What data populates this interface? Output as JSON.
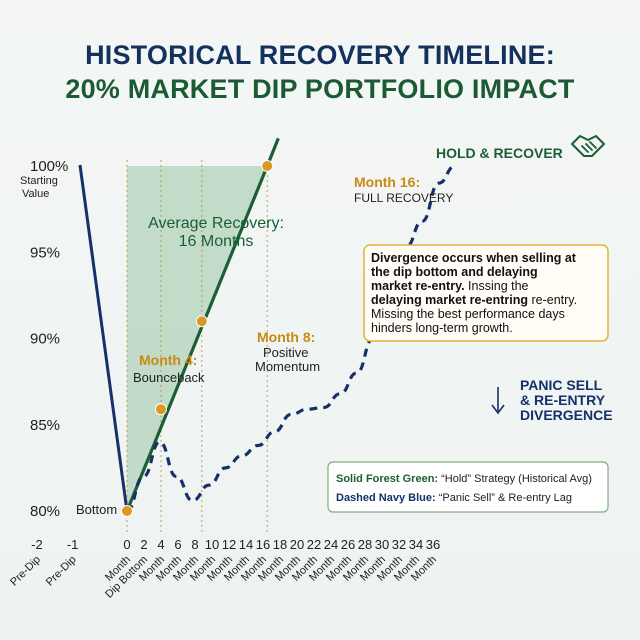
{
  "title_line1": "HISTORICAL RECOVERY TIMELINE:",
  "title_line2": "20% MARKET DIP PORTFOLIO IMPACT",
  "colors": {
    "hold": "#1b5e33",
    "panic": "#16306a",
    "shade": "#9cc6a8",
    "marker": "#d99a25",
    "marker_text": "#c98a14"
  },
  "chart_data": {
    "type": "line",
    "x_ticks": [
      "-2",
      "-1",
      "0",
      "2",
      "4",
      "6",
      "8",
      "10",
      "12",
      "14",
      "16",
      "18",
      "20",
      "22",
      "24",
      "26",
      "28",
      "30",
      "32",
      "34",
      "36"
    ],
    "x_tick_sublabels": [
      "Pre-Dip",
      "Pre-Dip",
      "Month",
      "Dip Bottom",
      "Month",
      "Month",
      "Month",
      "Month",
      "Month",
      "Month",
      "Month",
      "Month",
      "Month",
      "Month",
      "Month",
      "Month",
      "Month",
      "Month",
      "Month",
      "Month",
      "Month"
    ],
    "y_ticks": [
      "100%",
      "95%",
      "90%",
      "85%",
      "80%"
    ],
    "y_tick_note": "Starting Value",
    "ylim": [
      80,
      100
    ],
    "series": [
      {
        "name": "Hold",
        "points": [
          [
            -2,
            100
          ],
          [
            0,
            80
          ],
          [
            16.5,
            100
          ]
        ]
      },
      {
        "name": "Panic Sell",
        "points": [
          [
            0,
            80
          ],
          [
            2,
            82
          ],
          [
            4,
            84
          ],
          [
            6,
            82
          ],
          [
            8,
            80.6
          ],
          [
            10,
            81.5
          ],
          [
            12,
            82.5
          ],
          [
            14,
            83.2
          ],
          [
            16,
            83.8
          ],
          [
            18,
            84.6
          ],
          [
            20,
            85.6
          ],
          [
            22,
            85.9
          ],
          [
            24,
            86
          ],
          [
            26,
            86.8
          ],
          [
            28,
            88
          ],
          [
            30,
            90
          ],
          [
            32,
            93
          ],
          [
            34,
            95.3
          ],
          [
            36,
            96.8
          ],
          [
            38,
            99
          ],
          [
            40,
            100
          ]
        ]
      }
    ],
    "markers": [
      {
        "x": 0,
        "y": 80,
        "label": "Bottom"
      },
      {
        "x": 4,
        "y": 86,
        "label": "Month 4:",
        "sublabel": "Bounceback"
      },
      {
        "x": 8,
        "y": 91,
        "label": "Month 8:",
        "sublabel": "Positive Momentum"
      },
      {
        "x": 16,
        "y": 100,
        "label": "Month 16:",
        "sublabel": "FULL RECOVERY"
      }
    ],
    "shade_label": "Average Recovery: 16 Months",
    "hold_label": "HOLD & RECOVER",
    "panic_label": [
      "PANIC SELL",
      "& RE-ENTRY",
      "DIVERGENCE"
    ],
    "note": {
      "bold": "Divergence occurs when selling at the dip bottom and delaying market re-entry.",
      "text1": "Inssing the",
      "bold2": "delaying market re-entring",
      "text2": "re-entry. Missing the best performance days hinders long-term growth."
    },
    "legend": [
      {
        "key": "Solid Forest Green:",
        "desc": "“Hold” Strategy (Historical Avg)"
      },
      {
        "key": "Dashed Navy Blue:",
        "desc": "“Panic Sell” & Re-entry Lag"
      }
    ]
  }
}
